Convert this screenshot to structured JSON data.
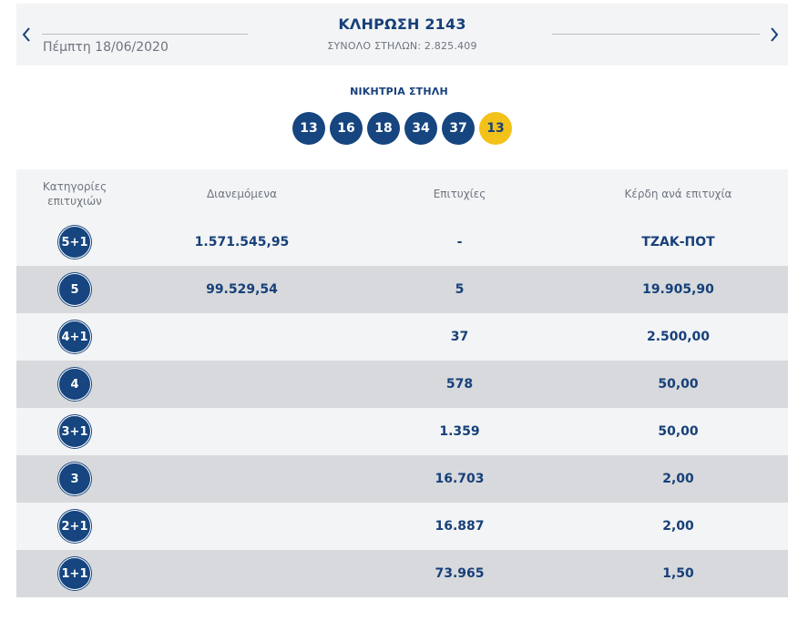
{
  "header": {
    "date": "Πέμπτη 18/06/2020",
    "title": "ΚΛΗΡΩΣΗ 2143",
    "subtitle": "ΣΥΝΟΛΟ ΣΤΗΛΩΝ: 2.825.409"
  },
  "winning": {
    "label": "ΝΙΚΗΤΡΙΑ ΣΤΗΛΗ",
    "numbers": [
      "13",
      "16",
      "18",
      "34",
      "37"
    ],
    "joker": "13"
  },
  "table": {
    "headers": {
      "category": [
        "Κατηγορίες",
        "επιτυχιών"
      ],
      "distributed": "Διανεμόμενα",
      "winners": "Επιτυχίες",
      "prize": "Κέρδη ανά επιτυχία"
    },
    "rows": [
      {
        "category": "5+1",
        "distributed": "1.571.545,95",
        "winners": "-",
        "prize": "ΤΖΑΚ-ΠΟΤ"
      },
      {
        "category": "5",
        "distributed": "99.529,54",
        "winners": "5",
        "prize": "19.905,90"
      },
      {
        "category": "4+1",
        "distributed": "",
        "winners": "37",
        "prize": "2.500,00"
      },
      {
        "category": "4",
        "distributed": "",
        "winners": "578",
        "prize": "50,00"
      },
      {
        "category": "3+1",
        "distributed": "",
        "winners": "1.359",
        "prize": "50,00"
      },
      {
        "category": "3",
        "distributed": "",
        "winners": "16.703",
        "prize": "2,00"
      },
      {
        "category": "2+1",
        "distributed": "",
        "winners": "16.887",
        "prize": "2,00"
      },
      {
        "category": "1+1",
        "distributed": "",
        "winners": "73.965",
        "prize": "1,50"
      }
    ]
  },
  "icons": {
    "prev": "chevron-left-icon",
    "next": "chevron-right-icon"
  },
  "colors": {
    "primary": "#16457f",
    "joker": "#f2c21a",
    "row_light": "#f3f4f5",
    "row_dark": "#d7d9dc",
    "muted_text": "#6d7580"
  }
}
